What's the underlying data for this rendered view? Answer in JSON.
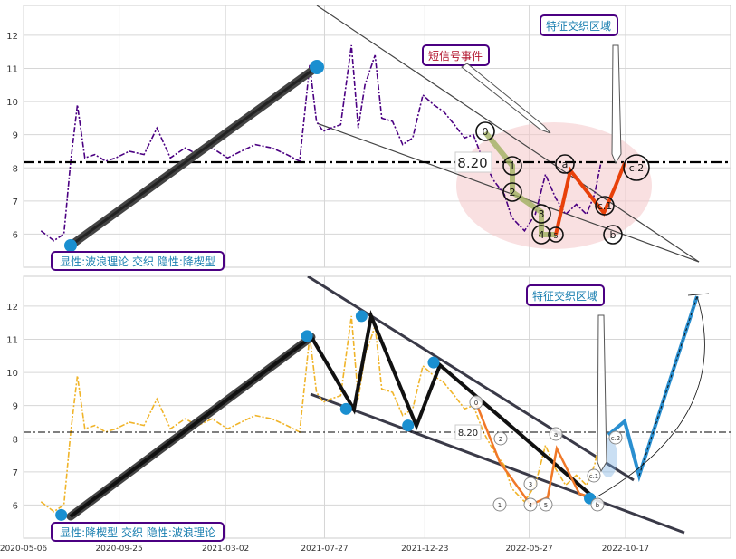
{
  "chart_data": [
    {
      "type": "line",
      "panel": "top",
      "ylim": [
        5.0,
        12.9
      ],
      "y_ticks": [
        6,
        7,
        8,
        9,
        10,
        11,
        12
      ],
      "grid": true,
      "hline": {
        "value": 8.2,
        "label": "8.20",
        "style": "dash-dot",
        "color": "#000000"
      },
      "colors": {
        "price": "#4b0082",
        "wave": "#e8410a",
        "box_border": "#4b0082",
        "box_text": "#1a7fb0",
        "ellipse": "#f4c6c8"
      },
      "series": [
        {
          "name": "",
          "x": [
            "2020-06-01",
            "2020-06-20",
            "2020-07-05",
            "2020-07-15",
            "2020-07-25",
            "2020-08-05",
            "2020-08-20",
            "2020-09-05",
            "2020-09-20",
            "2020-10-10",
            "2020-11-01",
            "2020-11-20",
            "2020-12-10",
            "2021-01-01",
            "2021-01-20",
            "2021-02-10",
            "2021-03-05",
            "2021-03-25",
            "2021-04-15",
            "2021-05-10",
            "2021-06-01",
            "2021-06-20",
            "2021-07-05",
            "2021-07-15",
            "2021-07-25",
            "2021-08-05",
            "2021-08-20",
            "2021-09-05",
            "2021-09-15",
            "2021-09-25",
            "2021-10-10",
            "2021-10-20",
            "2021-11-05",
            "2021-11-20",
            "2021-12-05",
            "2021-12-20",
            "2022-01-05",
            "2022-01-20",
            "2022-02-05",
            "2022-02-20",
            "2022-03-05",
            "2022-03-20",
            "2022-04-05",
            "2022-04-20",
            "2022-05-01",
            "2022-05-20",
            "2022-06-05",
            "2022-06-20",
            "2022-07-05",
            "2022-07-20",
            "2022-08-05",
            "2022-08-20",
            "2022-09-01",
            "2022-09-10"
          ],
          "y": [
            6.1,
            5.8,
            6.0,
            8.2,
            9.9,
            8.3,
            8.4,
            8.2,
            8.3,
            8.5,
            8.4,
            9.2,
            8.3,
            8.6,
            8.4,
            8.6,
            8.3,
            8.5,
            8.7,
            8.6,
            8.4,
            8.2,
            11.1,
            9.4,
            9.1,
            9.2,
            9.3,
            11.7,
            9.2,
            10.5,
            11.4,
            9.5,
            9.4,
            8.7,
            8.9,
            10.2,
            9.9,
            9.7,
            9.3,
            8.9,
            9.0,
            8.2,
            7.6,
            7.2,
            6.5,
            6.1,
            6.6,
            7.8,
            7.1,
            6.6,
            6.9,
            6.6,
            7.2,
            8.1
          ]
        }
      ],
      "labels": {
        "box_bottom": "显性:波浪理论 交织 隐性:降楔型",
        "short_signal": "短信号事件",
        "feature_zone": "特征交织区域",
        "wave_labels": [
          "0",
          "1",
          "2",
          "3",
          "4",
          "5",
          "a",
          "b",
          "c.1",
          "c.2"
        ]
      }
    },
    {
      "type": "line",
      "panel": "bottom",
      "ylim": [
        5.0,
        12.9
      ],
      "y_ticks": [
        6,
        7,
        8,
        9,
        10,
        11,
        12
      ],
      "x_tick_labels": [
        "2020-05-06",
        "2020-09-25",
        "2021-03-02",
        "2021-07-27",
        "2021-12-23",
        "2022-05-27",
        "2022-10-17"
      ],
      "grid": true,
      "hline": {
        "value": 8.2,
        "label": "8.20",
        "style": "dash-dot",
        "color": "#000000"
      },
      "colors": {
        "price": "#f0b429",
        "wave": "#f07828",
        "projection": "#2a8fd0",
        "box_border": "#4b0082",
        "box_text": "#1a7fb0"
      },
      "series": [
        {
          "name": "",
          "x": [
            "2020-06-01",
            "2020-06-20",
            "2020-07-05",
            "2020-07-15",
            "2020-07-25",
            "2020-08-05",
            "2020-08-20",
            "2020-09-05",
            "2020-09-20",
            "2020-10-10",
            "2020-11-01",
            "2020-11-20",
            "2020-12-10",
            "2021-01-01",
            "2021-01-20",
            "2021-02-10",
            "2021-03-05",
            "2021-03-25",
            "2021-04-15",
            "2021-05-10",
            "2021-06-01",
            "2021-06-20",
            "2021-07-05",
            "2021-07-15",
            "2021-07-25",
            "2021-08-05",
            "2021-08-20",
            "2021-09-05",
            "2021-09-15",
            "2021-09-25",
            "2021-10-10",
            "2021-10-20",
            "2021-11-05",
            "2021-11-20",
            "2021-12-05",
            "2021-12-20",
            "2022-01-05",
            "2022-01-20",
            "2022-02-05",
            "2022-02-20",
            "2022-03-05",
            "2022-03-20",
            "2022-04-05",
            "2022-04-20",
            "2022-05-01",
            "2022-05-20",
            "2022-06-05",
            "2022-06-20",
            "2022-07-05",
            "2022-07-20",
            "2022-08-05",
            "2022-08-20",
            "2022-09-01",
            "2022-09-10"
          ],
          "y": [
            6.1,
            5.8,
            6.0,
            8.2,
            9.9,
            8.3,
            8.4,
            8.2,
            8.3,
            8.5,
            8.4,
            9.2,
            8.3,
            8.6,
            8.4,
            8.6,
            8.3,
            8.5,
            8.7,
            8.6,
            8.4,
            8.2,
            11.1,
            9.4,
            9.1,
            9.2,
            9.3,
            11.7,
            9.2,
            10.5,
            11.4,
            9.5,
            9.4,
            8.7,
            8.9,
            10.2,
            9.9,
            9.7,
            9.3,
            8.9,
            9.0,
            8.2,
            7.6,
            7.2,
            6.5,
            6.1,
            6.6,
            7.8,
            7.1,
            6.6,
            6.9,
            6.6,
            7.2,
            8.1
          ]
        }
      ],
      "zigzag_pivots": [
        {
          "x": "2020-07-01",
          "y": 5.7
        },
        {
          "x": "2021-07-01",
          "y": 11.1
        },
        {
          "x": "2021-08-28",
          "y": 8.9
        },
        {
          "x": "2021-09-20",
          "y": 11.7
        },
        {
          "x": "2021-11-28",
          "y": 8.4
        },
        {
          "x": "2022-01-05",
          "y": 10.3
        },
        {
          "x": "2022-08-25",
          "y": 6.2
        }
      ],
      "projection": [
        {
          "x": "2022-09-10",
          "y": 8.3
        },
        {
          "x": "2022-09-22",
          "y": 8.5
        },
        {
          "x": "2022-10-10",
          "y": 6.9
        },
        {
          "x": "2022-12-30",
          "y": 12.3
        }
      ],
      "labels": {
        "box_bottom": "显性:降楔型 交织 隐性:波浪理论",
        "feature_zone": "特征交织区域",
        "wave_labels": [
          "0",
          "1",
          "2",
          "3",
          "4",
          "5",
          "a",
          "b",
          "c.1",
          "c.2"
        ]
      }
    }
  ]
}
